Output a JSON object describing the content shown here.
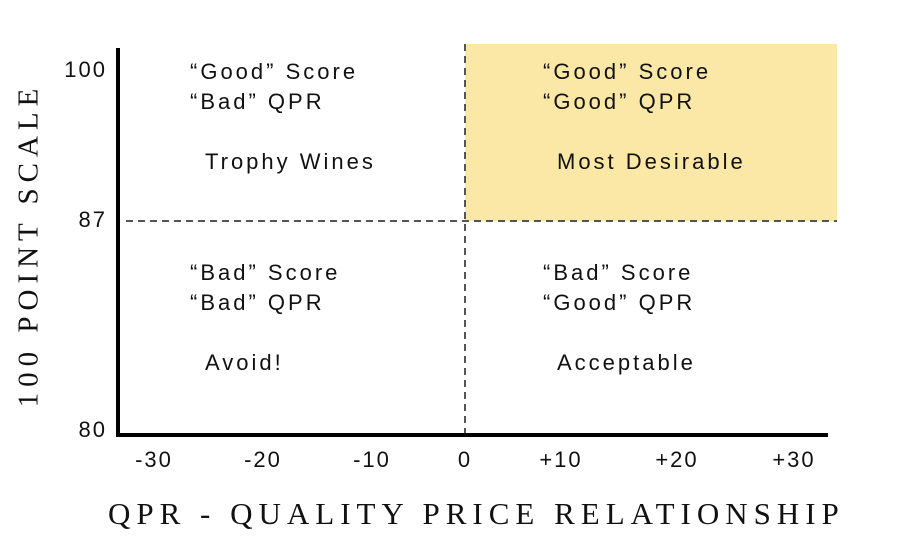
{
  "diagram": {
    "y_axis_label": "100 POINT SCALE",
    "x_axis_label": "QPR - QUALITY PRICE RELATIONSHIP",
    "y_ticks": [
      "100",
      "87",
      "80"
    ],
    "x_ticks": [
      "-30",
      "-20",
      "-10",
      "0",
      "+10",
      "+20",
      "+30"
    ],
    "highlight_color": "#fbe8a6",
    "quadrants": {
      "top_left": {
        "score": "“Good” Score",
        "qpr": "“Bad” QPR",
        "label": "Trophy Wines"
      },
      "top_right": {
        "score": "“Good” Score",
        "qpr": "“Good” QPR",
        "label": "Most Desirable"
      },
      "bottom_left": {
        "score": "“Bad” Score",
        "qpr": "“Bad” QPR",
        "label": "Avoid!"
      },
      "bottom_right": {
        "score": "“Bad” Score",
        "qpr": "“Good” QPR",
        "label": "Acceptable"
      }
    }
  }
}
